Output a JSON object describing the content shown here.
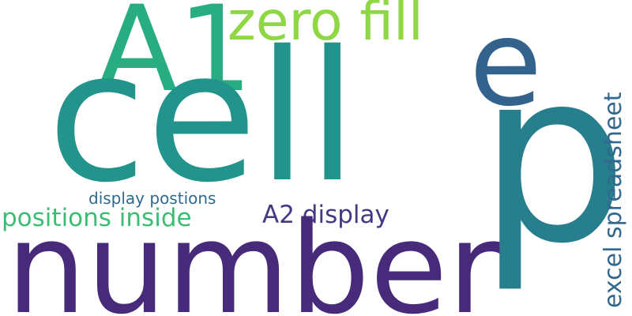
{
  "words": [
    {
      "id": "cell",
      "text": "cell",
      "color": "#22948b"
    },
    {
      "id": "number",
      "text": "number",
      "color": "#472a7a"
    },
    {
      "id": "p",
      "text": "p",
      "color": "#277f8e"
    },
    {
      "id": "a1",
      "text": "A1",
      "color": "#27ad81"
    },
    {
      "id": "e",
      "text": "e",
      "color": "#33638d"
    },
    {
      "id": "zero-fill",
      "text": "zero fill",
      "color": "#8fd744"
    },
    {
      "id": "excel-spreadsheet",
      "text": "excel spreadsheet",
      "color": "#31688e"
    },
    {
      "id": "a2-display",
      "text": "A2 display",
      "color": "#443a83"
    },
    {
      "id": "positions-inside",
      "text": "positions inside",
      "color": "#3dbc74"
    },
    {
      "id": "display-postions",
      "text": "display postions",
      "color": "#30698e"
    }
  ]
}
